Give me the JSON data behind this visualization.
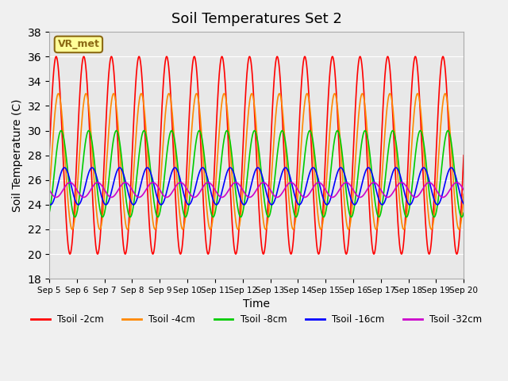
{
  "title": "Soil Temperatures Set 2",
  "xlabel": "Time",
  "ylabel": "Soil Temperature (C)",
  "ylim": [
    18,
    38
  ],
  "yticks": [
    18,
    20,
    22,
    24,
    26,
    28,
    30,
    32,
    34,
    36,
    38
  ],
  "x_start_day": 5,
  "x_end_day": 20,
  "background_color": "#e8e8e8",
  "fig_background": "#f0f0f0",
  "annotation_text": "VR_met",
  "annotation_bg": "#ffff99",
  "annotation_border": "#8b6914",
  "series": [
    {
      "name": "Tsoil -2cm",
      "color": "#ff0000",
      "amplitude": 8.0,
      "mean": 28.0,
      "phase_shift": 0.0,
      "period": 1.0
    },
    {
      "name": "Tsoil -4cm",
      "color": "#ff8800",
      "amplitude": 5.5,
      "mean": 27.5,
      "phase_shift": 0.08,
      "period": 1.0
    },
    {
      "name": "Tsoil -8cm",
      "color": "#00cc00",
      "amplitude": 3.5,
      "mean": 26.5,
      "phase_shift": 0.18,
      "period": 1.0
    },
    {
      "name": "Tsoil -16cm",
      "color": "#0000ff",
      "amplitude": 1.5,
      "mean": 25.5,
      "phase_shift": 0.3,
      "period": 1.0
    },
    {
      "name": "Tsoil -32cm",
      "color": "#cc00cc",
      "amplitude": 0.6,
      "mean": 25.2,
      "phase_shift": 0.5,
      "period": 1.0
    }
  ],
  "xtick_labels": [
    "Sep 5",
    "Sep 6",
    "Sep 7",
    "Sep 8",
    "Sep 9",
    "Sep 10",
    "Sep 11",
    "Sep 12",
    "Sep 13",
    "Sep 14",
    "Sep 15",
    "Sep 16",
    "Sep 17",
    "Sep 18",
    "Sep 19",
    "Sep 20"
  ],
  "xtick_positions": [
    5,
    6,
    7,
    8,
    9,
    10,
    11,
    12,
    13,
    14,
    15,
    16,
    17,
    18,
    19,
    20
  ]
}
